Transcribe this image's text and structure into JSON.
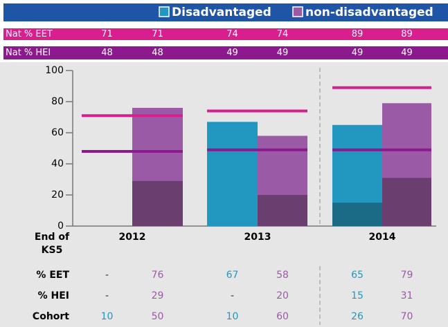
{
  "chart_data": {
    "type": "bar",
    "x_label": "End of KS5",
    "categories": [
      "2012",
      "2013",
      "2014"
    ],
    "series": [
      {
        "name": "Disadvantaged",
        "color": "#2298c0",
        "dark_color": "#1b6b87",
        "eet": [
          null,
          67,
          65
        ],
        "hei": [
          null,
          null,
          15
        ],
        "cohort": [
          10,
          10,
          26
        ]
      },
      {
        "name": "non-disadvantaged",
        "color": "#9a5aa6",
        "dark_color": "#6a3f70",
        "eet": [
          76,
          58,
          79
        ],
        "hei": [
          29,
          20,
          31
        ],
        "cohort": [
          50,
          60,
          70
        ]
      }
    ],
    "nat_rows": [
      {
        "label": "Nat % EET",
        "color": "#d81f8d",
        "values": [
          71,
          71,
          74,
          74,
          89,
          89
        ]
      },
      {
        "label": "Nat % HEI",
        "color": "#8c1a8e",
        "values": [
          48,
          48,
          49,
          49,
          49,
          49
        ]
      }
    ],
    "row_labels": [
      "% EET",
      "% HEI",
      "Cohort"
    ],
    "missing_label": "-",
    "ylim": [
      0,
      100
    ],
    "yticks": [
      0,
      20,
      40,
      60,
      80,
      100
    ]
  }
}
